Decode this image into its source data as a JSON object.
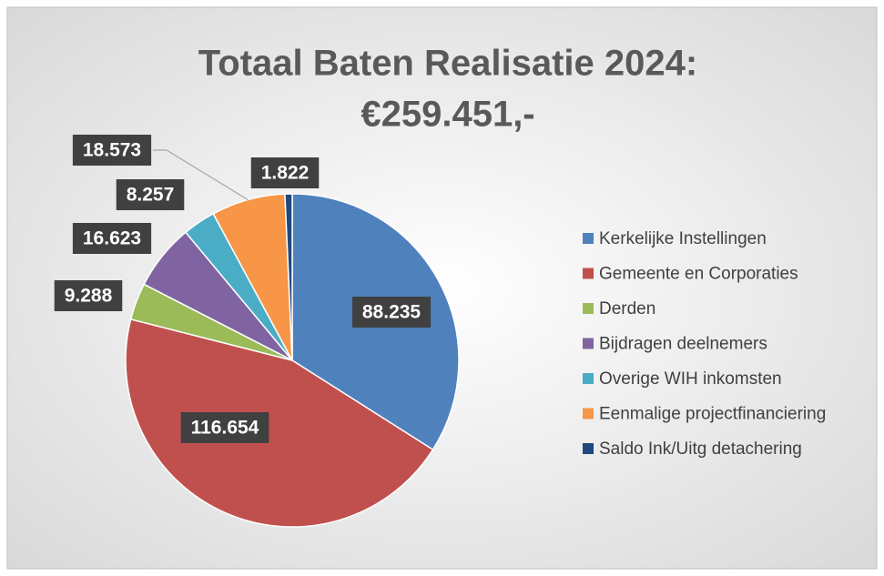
{
  "chart_data": {
    "type": "pie",
    "title": "Totaal Baten Realisatie 2024:",
    "subtitle": "€259.451,-",
    "categories": [
      "Kerkelijke Instellingen",
      "Gemeente en Corporaties",
      "Derden",
      "Bijdragen deelnemers",
      "Overige WIH inkomsten",
      "Eenmalige projectfinanciering",
      "Saldo Ink/Uitg detachering"
    ],
    "values": [
      88235,
      116654,
      9288,
      16623,
      8257,
      18573,
      1822
    ],
    "value_labels": [
      "88.235",
      "116.654",
      "9.288",
      "16.623",
      "8.257",
      "18.573",
      "1.822"
    ],
    "colors": [
      "#4f81bd",
      "#c0504d",
      "#9bbb59",
      "#8064a2",
      "#4bacc6",
      "#f79646",
      "#1f497d"
    ],
    "legend": "right"
  }
}
